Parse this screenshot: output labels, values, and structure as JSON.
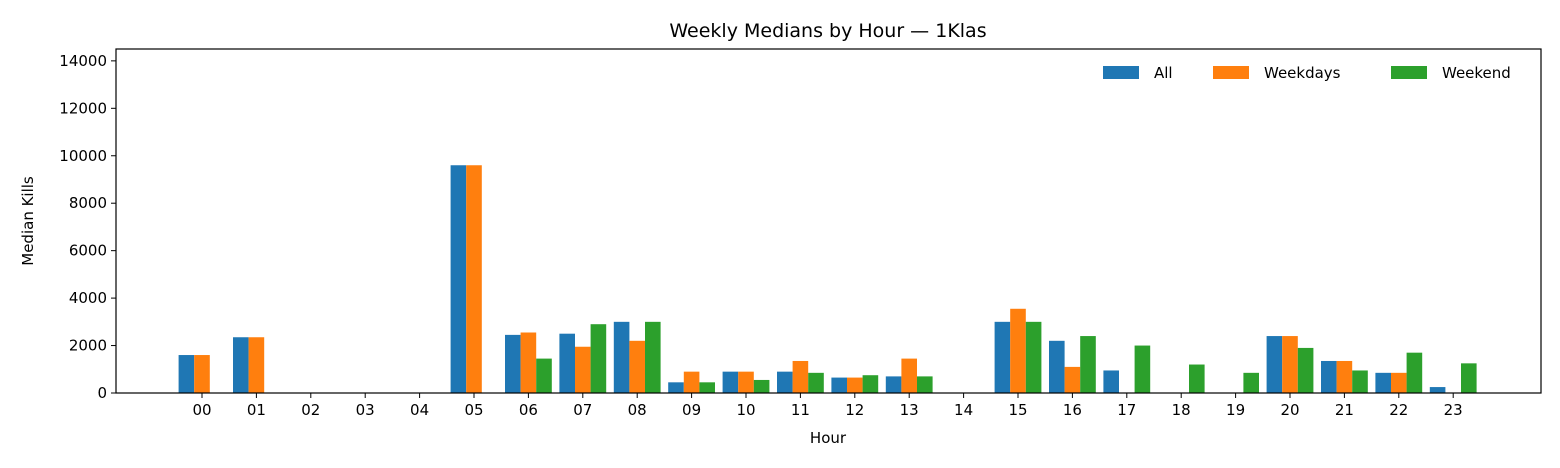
{
  "chart_data": {
    "type": "bar",
    "title": "Weekly Medians by Hour — 1Klas",
    "xlabel": "Hour",
    "ylabel": "Median Kills",
    "ylim": [
      0,
      14500
    ],
    "yticks": [
      0,
      2000,
      4000,
      6000,
      8000,
      10000,
      12000,
      14000
    ],
    "grid": false,
    "legend_position": "top-right",
    "categories": [
      "00",
      "01",
      "02",
      "03",
      "04",
      "05",
      "06",
      "07",
      "08",
      "09",
      "10",
      "11",
      "12",
      "13",
      "14",
      "15",
      "16",
      "17",
      "18",
      "19",
      "20",
      "21",
      "22",
      "23"
    ],
    "series": [
      {
        "name": "All",
        "color": "#1f77b4",
        "values": [
          1600,
          2350,
          0,
          0,
          0,
          9600,
          2450,
          2500,
          3000,
          450,
          900,
          900,
          650,
          700,
          0,
          3000,
          2200,
          950,
          0,
          0,
          2400,
          1350,
          850,
          250
        ]
      },
      {
        "name": "Weekdays",
        "color": "#ff7f0e",
        "values": [
          1600,
          2350,
          0,
          0,
          0,
          9600,
          2550,
          1950,
          2200,
          900,
          900,
          1350,
          650,
          1450,
          0,
          3550,
          1100,
          0,
          0,
          0,
          2400,
          1350,
          850,
          0
        ]
      },
      {
        "name": "Weekend",
        "color": "#2ca02c",
        "values": [
          0,
          0,
          0,
          0,
          0,
          0,
          1450,
          2900,
          3000,
          450,
          550,
          850,
          750,
          700,
          0,
          3000,
          2400,
          2000,
          1200,
          850,
          1900,
          950,
          1700,
          1250
        ]
      }
    ]
  }
}
